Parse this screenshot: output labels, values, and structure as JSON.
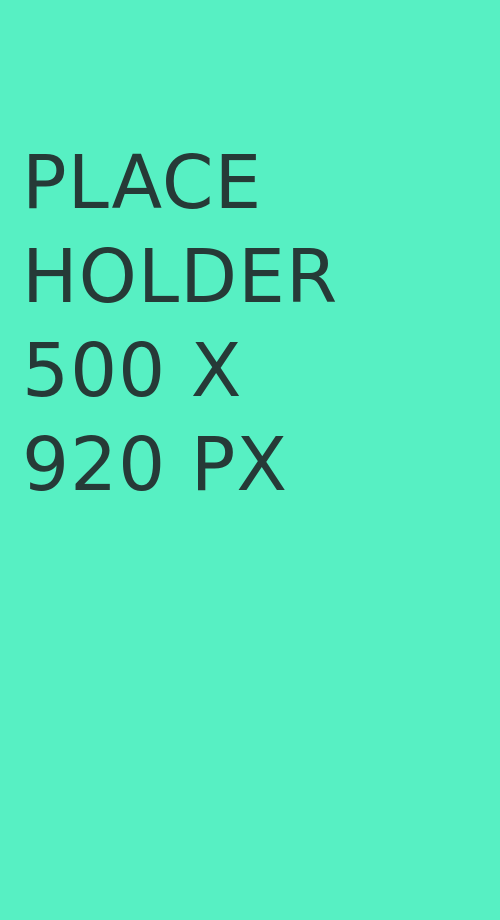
{
  "background_color": "#57f0c3",
  "text_color": "#263a37",
  "placeholder": {
    "lines": [
      "PLACE",
      "HOLDER",
      "500 X",
      "920 PX"
    ]
  }
}
